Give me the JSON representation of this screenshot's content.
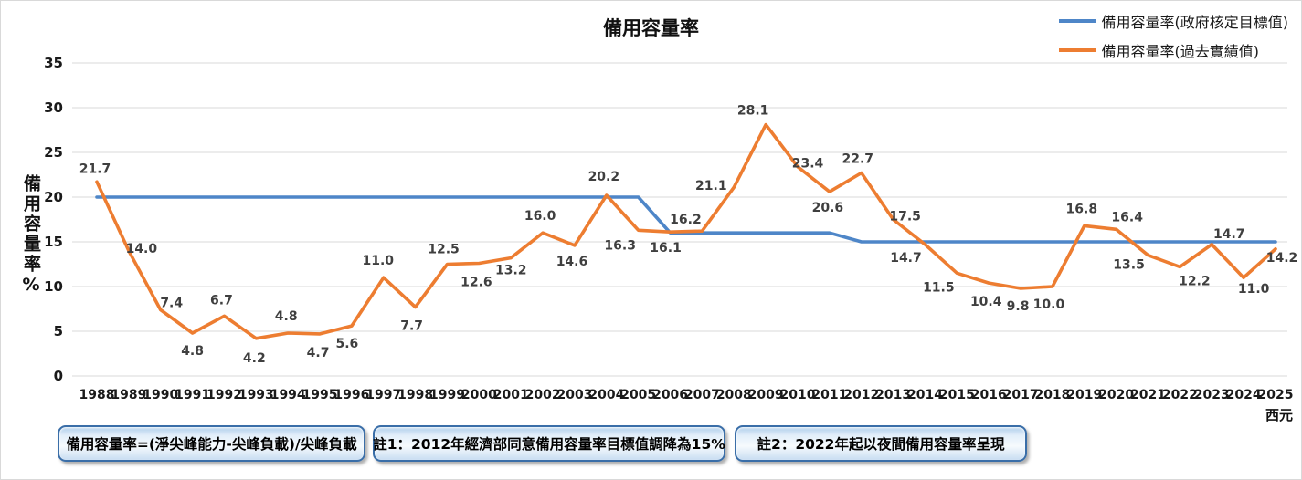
{
  "title": "備用容量率",
  "legend": {
    "items": [
      {
        "label": "備用容量率(政府核定目標值)",
        "color": "#4E86C8"
      },
      {
        "label": "備用容量率(過去實績值)",
        "color": "#ED7D31"
      }
    ]
  },
  "y_axis_title": "備用容量率%",
  "x_axis_unit": "西元",
  "chart_data": {
    "type": "line",
    "title": "備用容量率",
    "xlabel": "西元",
    "ylabel": "備用容量率%",
    "ylim": [
      0,
      35
    ],
    "y_ticks": [
      0,
      5,
      10,
      15,
      20,
      25,
      30,
      35
    ],
    "grid": true,
    "grid_color": "#d9d9d9",
    "tick_color": "#1a1a1a",
    "data_label_color": "#3f3f3f",
    "legend_position": "top-right",
    "x": [
      1988,
      1989,
      1990,
      1991,
      1992,
      1993,
      1994,
      1995,
      1996,
      1997,
      1998,
      1999,
      2000,
      2001,
      2002,
      2003,
      2004,
      2005,
      2006,
      2007,
      2008,
      2009,
      2010,
      2011,
      2012,
      2013,
      2014,
      2015,
      2016,
      2017,
      2018,
      2019,
      2020,
      2021,
      2022,
      2023,
      2024,
      2025
    ],
    "series": [
      {
        "name": "備用容量率(政府核定目標值)",
        "color": "#4E86C8",
        "show_labels": false,
        "values": [
          20,
          20,
          20,
          20,
          20,
          20,
          20,
          20,
          20,
          20,
          20,
          20,
          20,
          20,
          20,
          20,
          20,
          20,
          16,
          16,
          16,
          16,
          16,
          16,
          15,
          15,
          15,
          15,
          15,
          15,
          15,
          15,
          15,
          15,
          15,
          15,
          15,
          15
        ]
      },
      {
        "name": "備用容量率(過去實績值)",
        "color": "#ED7D31",
        "show_labels": true,
        "values": [
          21.7,
          14.0,
          7.4,
          4.8,
          6.7,
          4.2,
          4.8,
          4.7,
          5.6,
          11.0,
          7.7,
          12.5,
          12.6,
          13.2,
          16.0,
          14.6,
          20.2,
          16.3,
          16.1,
          16.2,
          21.1,
          28.1,
          23.4,
          20.6,
          22.7,
          17.5,
          14.7,
          11.5,
          10.4,
          9.8,
          10.0,
          16.8,
          16.4,
          13.5,
          12.2,
          14.7,
          11.0,
          14.2
        ],
        "label_offsets": [
          [
            -2,
            -10
          ],
          [
            14,
            2
          ],
          [
            12,
            -3
          ],
          [
            0,
            24
          ],
          [
            -3,
            -13
          ],
          [
            -2,
            26
          ],
          [
            -2,
            -14
          ],
          [
            -2,
            25
          ],
          [
            -5,
            24
          ],
          [
            -6,
            -14
          ],
          [
            -4,
            25
          ],
          [
            -4,
            -12
          ],
          [
            -3,
            25
          ],
          [
            0,
            18
          ],
          [
            -3,
            -14
          ],
          [
            -3,
            22
          ],
          [
            -3,
            -16
          ],
          [
            -20,
            21
          ],
          [
            -5,
            22
          ],
          [
            -18,
            -8
          ],
          [
            -25,
            3
          ],
          [
            -14,
            -11
          ],
          [
            11,
            1
          ],
          [
            -2,
            22
          ],
          [
            -4,
            -11
          ],
          [
            13,
            1
          ],
          [
            -21,
            19
          ],
          [
            -20,
            20
          ],
          [
            -3,
            25
          ],
          [
            -3,
            24
          ],
          [
            -4,
            24
          ],
          [
            -3,
            -14
          ],
          [
            12,
            -9
          ],
          [
            -21,
            15
          ],
          [
            16,
            20
          ],
          [
            19,
            -7
          ],
          [
            11,
            17
          ],
          [
            7,
            14
          ]
        ]
      }
    ]
  },
  "notes": [
    {
      "text": "備用容量率=(淨尖峰能力-尖峰負載)/尖峰負載"
    },
    {
      "text": "註1：2012年經濟部同意備用容量率目標值調降為15%"
    },
    {
      "text": "註2：2022年起以夜間備用容量率呈現"
    }
  ]
}
